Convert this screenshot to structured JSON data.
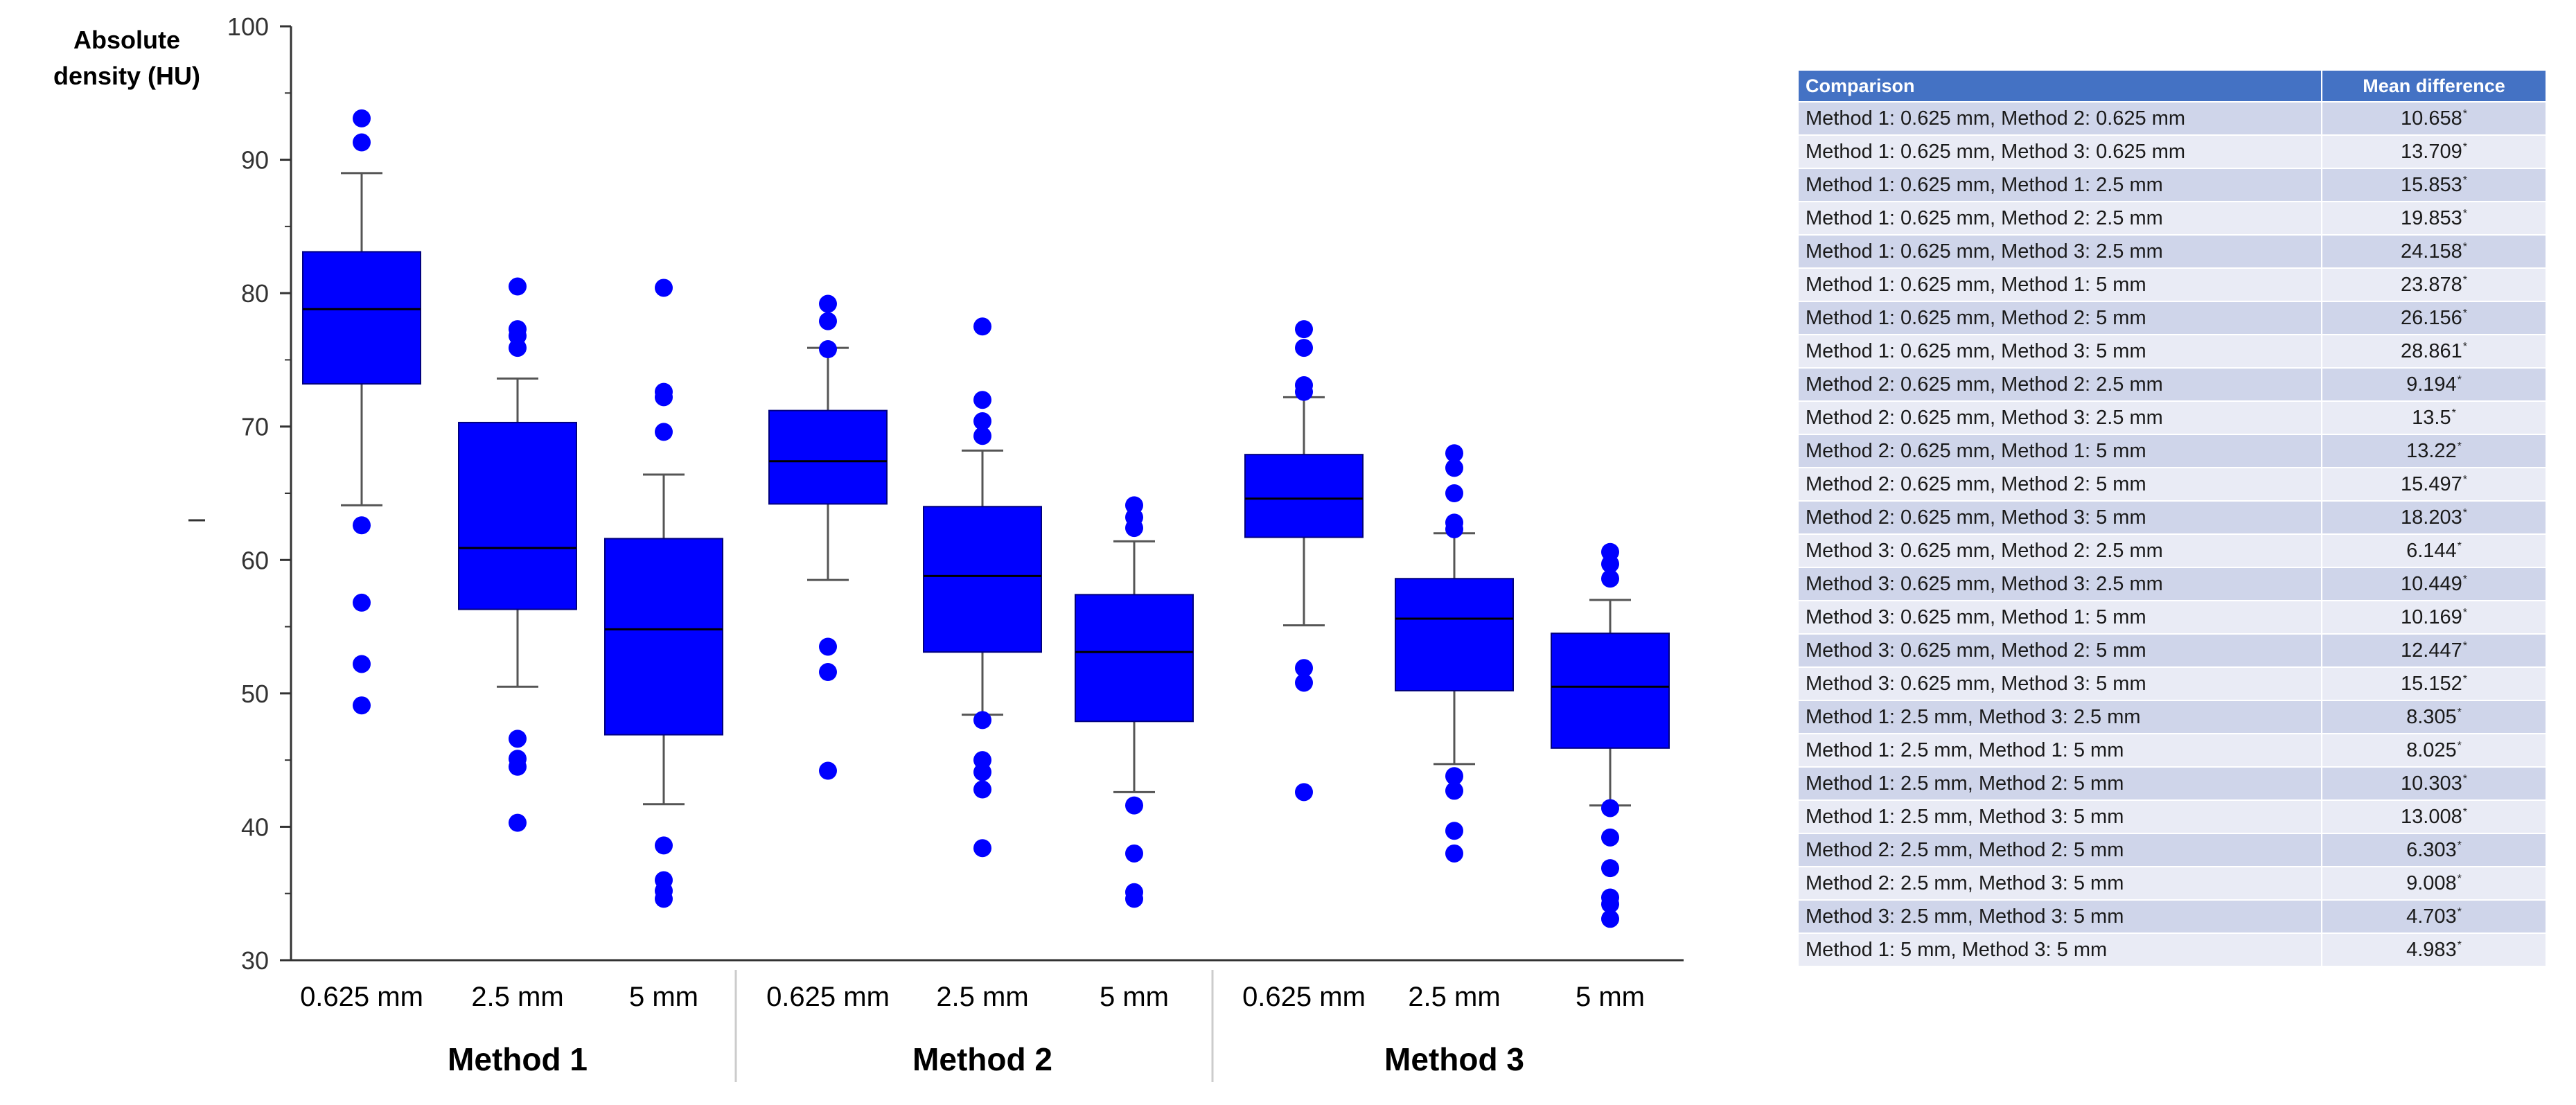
{
  "chart_data": {
    "type": "box",
    "ylabel_lines": [
      "Absolute",
      "density (HU)"
    ],
    "ylim": [
      30,
      100
    ],
    "yticks": [
      30,
      40,
      50,
      60,
      70,
      80,
      90,
      100
    ],
    "groups": [
      {
        "name": "Method 1",
        "boxes": [
          {
            "label": "0.625 mm",
            "q1": 73.2,
            "median": 78.8,
            "q3": 83.1,
            "whisker_low": 64.1,
            "whisker_high": 89.0,
            "outliers": [
              93.1,
              91.3,
              62.6,
              56.8,
              52.2,
              49.1
            ]
          },
          {
            "label": "2.5 mm",
            "q1": 56.3,
            "median": 60.9,
            "q3": 70.3,
            "whisker_low": 50.5,
            "whisker_high": 73.6,
            "outliers": [
              80.5,
              77.3,
              76.8,
              75.9,
              46.6,
              45.1,
              44.5,
              40.3
            ]
          },
          {
            "label": "5 mm",
            "q1": 46.9,
            "median": 54.8,
            "q3": 61.6,
            "whisker_low": 41.7,
            "whisker_high": 66.4,
            "outliers": [
              80.4,
              72.6,
              72.2,
              69.6,
              38.6,
              36.0,
              35.2,
              34.6
            ]
          }
        ]
      },
      {
        "name": "Method 2",
        "boxes": [
          {
            "label": "0.625 mm",
            "q1": 64.2,
            "median": 67.4,
            "q3": 71.2,
            "whisker_low": 58.5,
            "whisker_high": 75.9,
            "outliers": [
              79.2,
              77.9,
              75.8,
              53.5,
              51.6,
              44.2
            ]
          },
          {
            "label": "2.5 mm",
            "q1": 53.1,
            "median": 58.8,
            "q3": 64.0,
            "whisker_low": 48.4,
            "whisker_high": 68.2,
            "outliers": [
              77.5,
              72.0,
              70.4,
              69.3,
              48.0,
              45.0,
              44.1,
              42.8,
              38.4
            ]
          },
          {
            "label": "5 mm",
            "q1": 47.9,
            "median": 53.1,
            "q3": 57.4,
            "whisker_low": 42.6,
            "whisker_high": 61.4,
            "outliers": [
              64.1,
              63.2,
              62.4,
              41.6,
              38.0,
              35.1,
              34.6
            ]
          }
        ]
      },
      {
        "name": "Method 3",
        "boxes": [
          {
            "label": "0.625 mm",
            "q1": 61.7,
            "median": 64.6,
            "q3": 67.9,
            "whisker_low": 55.1,
            "whisker_high": 72.2,
            "outliers": [
              77.3,
              75.9,
              73.1,
              72.6,
              51.9,
              50.8,
              42.6
            ]
          },
          {
            "label": "2.5 mm",
            "q1": 50.2,
            "median": 55.6,
            "q3": 58.6,
            "whisker_low": 44.7,
            "whisker_high": 62.0,
            "outliers": [
              68.0,
              66.9,
              65.0,
              62.8,
              62.3,
              43.8,
              42.7,
              39.7,
              38.0
            ]
          },
          {
            "label": "5 mm",
            "q1": 45.9,
            "median": 50.5,
            "q3": 54.5,
            "whisker_low": 41.6,
            "whisker_high": 57.0,
            "outliers": [
              60.6,
              59.7,
              58.6,
              41.4,
              39.2,
              36.9,
              34.7,
              34.2,
              33.1
            ]
          }
        ]
      }
    ],
    "colors": {
      "box": "#0000ff",
      "outlier": "#0000ff",
      "axis": "#333333",
      "divider": "#cccccc"
    }
  },
  "table": {
    "headers": {
      "comparison": "Comparison",
      "mean_difference": "Mean difference"
    },
    "rows": [
      {
        "comparison": "Method 1: 0.625 mm, Method 2: 0.625 mm",
        "value": "10.658"
      },
      {
        "comparison": "Method 1: 0.625 mm, Method 3: 0.625 mm",
        "value": "13.709"
      },
      {
        "comparison": "Method 1: 0.625 mm, Method 1: 2.5 mm",
        "value": "15.853"
      },
      {
        "comparison": "Method 1: 0.625 mm, Method 2: 2.5 mm",
        "value": "19.853"
      },
      {
        "comparison": "Method 1: 0.625 mm, Method 3: 2.5 mm",
        "value": "24.158"
      },
      {
        "comparison": "Method 1: 0.625 mm, Method 1: 5 mm",
        "value": "23.878"
      },
      {
        "comparison": "Method 1: 0.625 mm, Method 2: 5 mm",
        "value": "26.156"
      },
      {
        "comparison": "Method 1: 0.625 mm, Method 3: 5 mm",
        "value": "28.861"
      },
      {
        "comparison": "Method 2: 0.625 mm, Method 2: 2.5 mm",
        "value": "9.194"
      },
      {
        "comparison": "Method 2: 0.625 mm, Method 3: 2.5 mm",
        "value": "13.5"
      },
      {
        "comparison": "Method 2: 0.625 mm, Method 1: 5 mm",
        "value": "13.22"
      },
      {
        "comparison": "Method 2: 0.625 mm, Method 2: 5 mm",
        "value": "15.497"
      },
      {
        "comparison": "Method 2: 0.625 mm, Method 3: 5 mm",
        "value": "18.203"
      },
      {
        "comparison": "Method 3: 0.625 mm, Method 2: 2.5 mm",
        "value": "6.144"
      },
      {
        "comparison": "Method 3: 0.625 mm, Method 3: 2.5 mm",
        "value": "10.449"
      },
      {
        "comparison": "Method 3: 0.625 mm, Method 1: 5 mm",
        "value": "10.169"
      },
      {
        "comparison": "Method 3: 0.625 mm, Method 2: 5 mm",
        "value": "12.447"
      },
      {
        "comparison": "Method 3: 0.625 mm, Method 3: 5 mm",
        "value": "15.152"
      },
      {
        "comparison": "Method 1: 2.5 mm, Method 3: 2.5 mm",
        "value": "8.305"
      },
      {
        "comparison": "Method 1: 2.5 mm, Method 1: 5 mm",
        "value": "8.025"
      },
      {
        "comparison": "Method 1: 2.5 mm, Method 2: 5 mm",
        "value": "10.303"
      },
      {
        "comparison": "Method 1: 2.5 mm, Method 3: 5 mm",
        "value": "13.008"
      },
      {
        "comparison": "Method 2: 2.5 mm, Method 2: 5 mm",
        "value": "6.303"
      },
      {
        "comparison": "Method 2: 2.5 mm, Method 3: 5 mm",
        "value": "9.008"
      },
      {
        "comparison": "Method 3: 2.5 mm, Method 3: 5 mm",
        "value": "4.703"
      },
      {
        "comparison": "Method 1: 5 mm, Method 3: 5 mm",
        "value": "4.983"
      }
    ],
    "significance_marker": "*",
    "header_color": "#4472c4"
  }
}
